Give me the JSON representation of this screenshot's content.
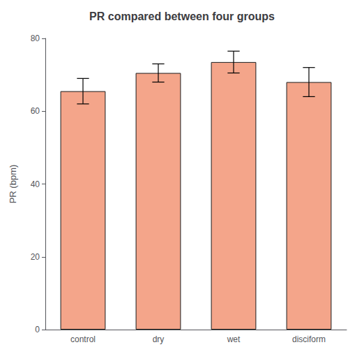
{
  "chart_data": {
    "type": "bar",
    "title": "PR compared between four groups",
    "ylabel": "PR (bpm)",
    "categories": [
      "control",
      "dry",
      "wet",
      "disciform"
    ],
    "values": [
      65.5,
      70.5,
      73.5,
      68.0
    ],
    "errors": [
      3.5,
      2.5,
      3.0,
      4.0
    ],
    "color": "#F4A58A",
    "ylim": [
      0,
      80
    ],
    "yticks": [
      0,
      20,
      40,
      60,
      80
    ],
    "grid": false
  }
}
